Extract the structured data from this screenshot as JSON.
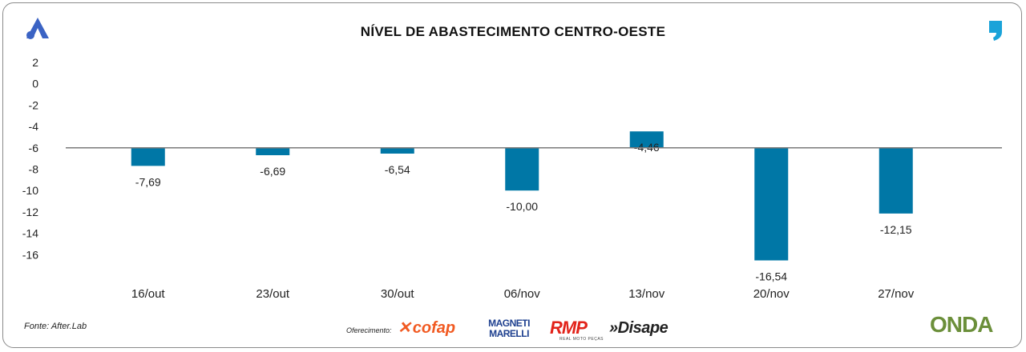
{
  "header": {
    "title": "NÍVEL DE ABASTECIMENTO CENTRO-OESTE"
  },
  "chart_data": {
    "type": "bar",
    "title": "NÍVEL DE ABASTECIMENTO CENTRO-OESTE",
    "xlabel": "",
    "ylabel": "",
    "baseline": -6,
    "ylim": [
      -17,
      3
    ],
    "yticks": [
      2,
      0,
      -2,
      -4,
      -6,
      -8,
      -10,
      -12,
      -14,
      -16
    ],
    "categories": [
      "16/out",
      "23/out",
      "30/out",
      "06/nov",
      "13/nov",
      "20/nov",
      "27/nov"
    ],
    "values": [
      -7.69,
      -6.69,
      -6.54,
      -10.0,
      -4.46,
      -16.54,
      -12.15
    ],
    "labels": [
      "-7,69",
      "-6,69",
      "-6,54",
      "-10,00",
      "-4,46",
      "-16,54",
      "-12,15"
    ],
    "bar_color": "#0077a6",
    "baseline_color": "#7a7a7a"
  },
  "footer": {
    "source": "Fonte: After.Lab",
    "sponsor_label": "Oferecimento:",
    "sponsors": {
      "cofap": "cofap",
      "magneti": "MAGNETI MARELLI",
      "rmp": "RMP",
      "rmp_sub": "REAL MOTO PEÇAS",
      "disape": "»Disape",
      "onda": "ONDA"
    }
  }
}
